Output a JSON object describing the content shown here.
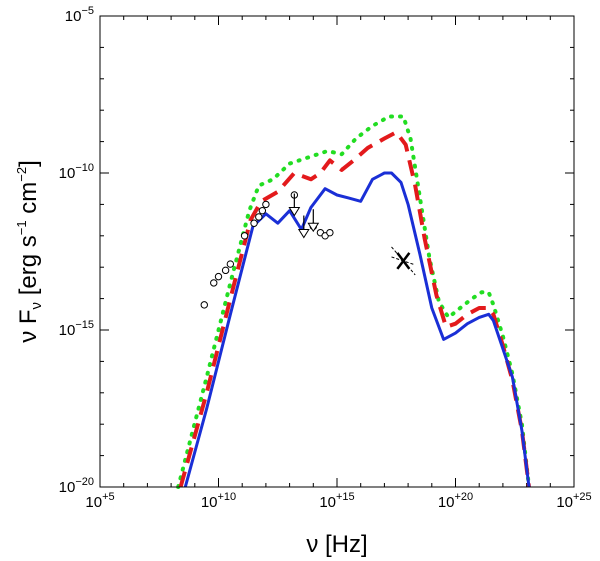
{
  "chart_data": {
    "type": "line",
    "xlabel": {
      "prefix": "ν",
      "suffix": " [Hz]"
    },
    "ylabel": {
      "prefix": "ν F",
      "sub": "ν",
      "bracket_open": " [erg s",
      "exp1": "−1",
      "mid": " cm",
      "exp2": "−2",
      "bracket_close": "]"
    },
    "xscale": "log10",
    "yscale": "log10",
    "xlim_exp": [
      5,
      25
    ],
    "ylim_exp": [
      -20,
      -5
    ],
    "x_ticks": [
      {
        "exp": 5,
        "label": "+5"
      },
      {
        "exp": 10,
        "label": "+10"
      },
      {
        "exp": 15,
        "label": "+15"
      },
      {
        "exp": 20,
        "label": "+20"
      },
      {
        "exp": 25,
        "label": "+25"
      }
    ],
    "y_ticks": [
      {
        "exp": -20,
        "label": "−20"
      },
      {
        "exp": -15,
        "label": "−15"
      },
      {
        "exp": -10,
        "label": "−10"
      },
      {
        "exp": -5,
        "label": "−5"
      }
    ],
    "tick_base": "10",
    "series": [
      {
        "name": "model-solid",
        "style": "solid",
        "color": "#1a2fd6",
        "points": [
          [
            8.6,
            -20.0
          ],
          [
            9.5,
            -17.5
          ],
          [
            10.5,
            -14.5
          ],
          [
            11.45,
            -11.7
          ],
          [
            12.0,
            -11.3
          ],
          [
            12.5,
            -11.6
          ],
          [
            13.0,
            -11.2
          ],
          [
            13.5,
            -11.8
          ],
          [
            13.9,
            -11.1
          ],
          [
            14.5,
            -10.5
          ],
          [
            15.0,
            -10.7
          ],
          [
            15.5,
            -10.8
          ],
          [
            16.0,
            -10.9
          ],
          [
            16.5,
            -10.2
          ],
          [
            17.0,
            -10.0
          ],
          [
            17.3,
            -10.0
          ],
          [
            17.7,
            -10.3
          ],
          [
            18.0,
            -11.0
          ],
          [
            18.5,
            -12.6
          ],
          [
            19.0,
            -14.3
          ],
          [
            19.5,
            -15.3
          ],
          [
            20.0,
            -15.1
          ],
          [
            20.5,
            -14.8
          ],
          [
            21.0,
            -14.6
          ],
          [
            21.4,
            -14.5
          ],
          [
            21.6,
            -14.7
          ],
          [
            22.0,
            -15.6
          ],
          [
            22.4,
            -16.5
          ],
          [
            22.8,
            -18.2
          ],
          [
            23.1,
            -20.0
          ]
        ]
      },
      {
        "name": "model-dashed",
        "style": "dashed",
        "color": "#e31a1c",
        "points": [
          [
            8.4,
            -20.0
          ],
          [
            9.5,
            -17.0
          ],
          [
            10.5,
            -14.0
          ],
          [
            11.35,
            -11.5
          ],
          [
            11.8,
            -10.9
          ],
          [
            12.5,
            -10.6
          ],
          [
            13.2,
            -10.0
          ],
          [
            13.9,
            -10.2
          ],
          [
            14.3,
            -10.0
          ],
          [
            14.7,
            -9.6
          ],
          [
            15.2,
            -9.9
          ],
          [
            15.7,
            -9.6
          ],
          [
            16.3,
            -9.2
          ],
          [
            17.0,
            -8.9
          ],
          [
            17.5,
            -8.7
          ],
          [
            17.9,
            -9.1
          ],
          [
            18.3,
            -10.4
          ],
          [
            18.7,
            -12.1
          ],
          [
            19.2,
            -13.9
          ],
          [
            19.6,
            -14.9
          ],
          [
            20.0,
            -14.8
          ],
          [
            20.5,
            -14.5
          ],
          [
            21.0,
            -14.3
          ],
          [
            21.4,
            -14.3
          ],
          [
            21.6,
            -14.5
          ],
          [
            22.0,
            -15.5
          ],
          [
            22.4,
            -16.6
          ],
          [
            22.8,
            -18.2
          ],
          [
            23.1,
            -20.0
          ]
        ]
      },
      {
        "name": "model-dotted",
        "style": "dotted",
        "color": "#22dd22",
        "points": [
          [
            8.3,
            -20.0
          ],
          [
            9.5,
            -16.5
          ],
          [
            10.5,
            -13.5
          ],
          [
            11.3,
            -11.2
          ],
          [
            11.7,
            -10.4
          ],
          [
            12.3,
            -10.2
          ],
          [
            13.0,
            -9.7
          ],
          [
            13.8,
            -9.5
          ],
          [
            14.6,
            -9.3
          ],
          [
            15.2,
            -9.4
          ],
          [
            15.8,
            -8.9
          ],
          [
            16.5,
            -8.5
          ],
          [
            17.2,
            -8.2
          ],
          [
            17.8,
            -8.2
          ],
          [
            18.1,
            -8.9
          ],
          [
            18.5,
            -10.8
          ],
          [
            18.9,
            -12.7
          ],
          [
            19.3,
            -14.1
          ],
          [
            19.7,
            -14.6
          ],
          [
            20.2,
            -14.3
          ],
          [
            20.7,
            -14.0
          ],
          [
            21.1,
            -13.8
          ],
          [
            21.4,
            -13.8
          ],
          [
            21.6,
            -14.2
          ],
          [
            22.0,
            -15.2
          ],
          [
            22.4,
            -16.4
          ],
          [
            22.8,
            -18.0
          ],
          [
            23.1,
            -20.0
          ]
        ]
      }
    ],
    "observations": [
      [
        9.4,
        -14.2
      ],
      [
        9.8,
        -13.5
      ],
      [
        10.0,
        -13.3
      ],
      [
        10.3,
        -13.1
      ],
      [
        10.5,
        -12.9
      ],
      [
        11.1,
        -12.0
      ],
      [
        11.5,
        -11.6
      ],
      [
        11.7,
        -11.4
      ],
      [
        11.85,
        -11.2
      ],
      [
        12.0,
        -11.0
      ],
      [
        13.2,
        -10.7
      ],
      [
        14.0,
        -11.7
      ],
      [
        14.3,
        -11.9
      ],
      [
        14.5,
        -12.0
      ],
      [
        14.7,
        -11.9
      ]
    ],
    "upper_limits": [
      {
        "x": 13.2,
        "y": -11.1
      },
      {
        "x": 13.6,
        "y": -11.8
      },
      {
        "x": 14.0,
        "y": -11.6
      }
    ],
    "xray_spectrum": {
      "x_from": 17.3,
      "x_to": 18.3,
      "y_center": -12.8
    }
  }
}
